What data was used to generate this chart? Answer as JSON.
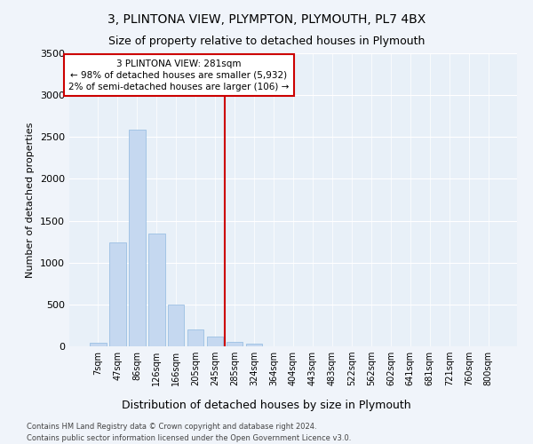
{
  "title": "3, PLINTONA VIEW, PLYMPTON, PLYMOUTH, PL7 4BX",
  "subtitle": "Size of property relative to detached houses in Plymouth",
  "xlabel": "Distribution of detached houses by size in Plymouth",
  "ylabel": "Number of detached properties",
  "bar_color": "#c5d8f0",
  "bar_edge_color": "#8fb8e0",
  "bg_color": "#e8f0f8",
  "fig_bg_color": "#f0f4fa",
  "grid_color": "#ffffff",
  "categories": [
    "7sqm",
    "47sqm",
    "86sqm",
    "126sqm",
    "166sqm",
    "205sqm",
    "245sqm",
    "285sqm",
    "324sqm",
    "364sqm",
    "404sqm",
    "443sqm",
    "483sqm",
    "522sqm",
    "562sqm",
    "602sqm",
    "641sqm",
    "681sqm",
    "721sqm",
    "760sqm",
    "800sqm"
  ],
  "values": [
    45,
    1240,
    2590,
    1350,
    500,
    200,
    120,
    50,
    30,
    0,
    0,
    0,
    0,
    0,
    0,
    0,
    0,
    0,
    0,
    0,
    0
  ],
  "ylim_max": 3500,
  "yticks": [
    0,
    500,
    1000,
    1500,
    2000,
    2500,
    3000,
    3500
  ],
  "vline_x": 6.5,
  "vline_color": "#cc0000",
  "annotation_text": "3 PLINTONA VIEW: 281sqm\n← 98% of detached houses are smaller (5,932)\n2% of semi-detached houses are larger (106) →",
  "footer_line1": "Contains HM Land Registry data © Crown copyright and database right 2024.",
  "footer_line2": "Contains public sector information licensed under the Open Government Licence v3.0."
}
